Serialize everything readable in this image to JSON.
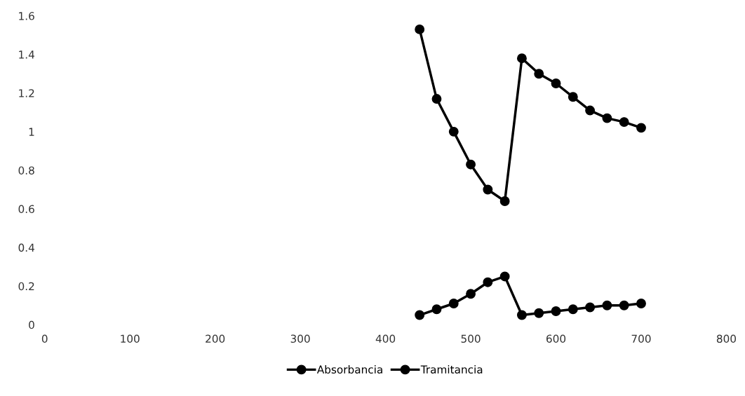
{
  "chart_data": {
    "type": "line",
    "x": [
      440,
      460,
      480,
      500,
      520,
      540,
      560,
      580,
      600,
      620,
      640,
      660,
      680,
      700
    ],
    "series": [
      {
        "name": "Absorbancia",
        "color": "#000000",
        "values": [
          1.53,
          1.17,
          1.0,
          0.83,
          0.7,
          0.64,
          1.38,
          1.3,
          1.25,
          1.18,
          1.11,
          1.07,
          1.05,
          1.02
        ]
      },
      {
        "name": "Tramitancia",
        "color": "#000000",
        "values": [
          0.05,
          0.08,
          0.11,
          0.16,
          0.22,
          0.25,
          0.05,
          0.06,
          0.07,
          0.08,
          0.09,
          0.1,
          0.1,
          0.11
        ]
      }
    ],
    "xlim": [
      0,
      800
    ],
    "xticks": [
      0,
      100,
      200,
      300,
      400,
      500,
      600,
      700,
      800
    ],
    "ylim": [
      0,
      1.6
    ],
    "yticks": [
      0,
      {
        "value": 0.2,
        "label": "0.2"
      },
      {
        "value": 0.4,
        "label": "0.4"
      },
      {
        "value": 0.6,
        "label": "0.6"
      },
      {
        "value": 0.8,
        "label": "0.8"
      },
      1,
      {
        "value": 1.2,
        "label": "1.2"
      },
      {
        "value": 1.4,
        "label": "1.4"
      },
      {
        "value": 1.6,
        "label": "1.6"
      }
    ],
    "grid": false,
    "legend": "bottom",
    "marker": "circle",
    "line_style": "solid"
  }
}
